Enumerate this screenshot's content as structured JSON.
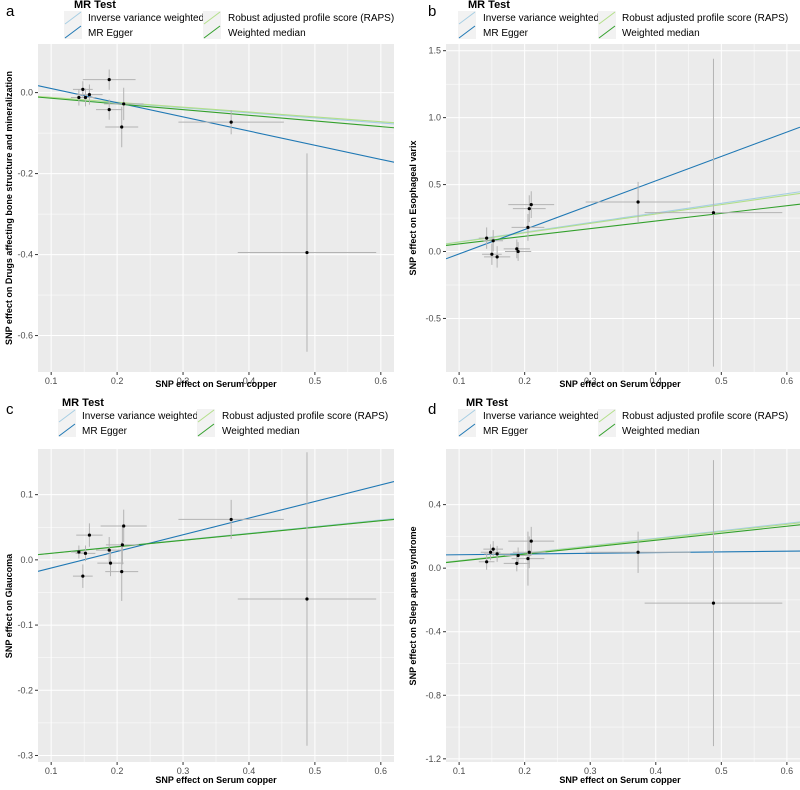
{
  "figure": {
    "legend_title": "MR Test",
    "legend_items": [
      {
        "name": "Inverse variance weighted",
        "color": "#a6cee3"
      },
      {
        "name": "Robust adjusted profile score (RAPS)",
        "color": "#b2df8a"
      },
      {
        "name": "MR Egger",
        "color": "#1f78b4"
      },
      {
        "name": "Weighted median",
        "color": "#33a02c"
      }
    ],
    "colors": {
      "panel_bg": "#ebebeb",
      "grid": "#ffffff",
      "point": "#000000",
      "errorbar": "#b3b3b3"
    }
  },
  "chart_data": [
    {
      "type": "scatter",
      "letter": "a",
      "title": "",
      "xlabel": "SNP effect on Serum copper",
      "ylabel": "SNP effect on Drugs affecting bone structure and mineralization",
      "xlim": [
        0.08,
        0.62
      ],
      "ylim": [
        -0.69,
        0.12
      ],
      "xticks": [
        0.1,
        0.2,
        0.3,
        0.4,
        0.5,
        0.6
      ],
      "xtick_labels": [
        "0.1",
        "0.2",
        "0.3",
        "0.4",
        "0.5",
        "0.6"
      ],
      "yticks": [
        0.0,
        -0.2,
        -0.4,
        -0.6
      ],
      "ytick_labels": [
        "0.0",
        "-0.2",
        "-0.4",
        "-0.6"
      ],
      "points": [
        {
          "x": 0.142,
          "y": -0.012,
          "xerr": 0.012,
          "yerr": 0.02
        },
        {
          "x": 0.148,
          "y": 0.008,
          "xerr": 0.015,
          "yerr": 0.02
        },
        {
          "x": 0.152,
          "y": -0.012,
          "xerr": 0.015,
          "yerr": 0.022
        },
        {
          "x": 0.158,
          "y": -0.005,
          "xerr": 0.02,
          "yerr": 0.025
        },
        {
          "x": 0.188,
          "y": 0.032,
          "xerr": 0.04,
          "yerr": 0.025
        },
        {
          "x": 0.188,
          "y": -0.042,
          "xerr": 0.02,
          "yerr": 0.025
        },
        {
          "x": 0.207,
          "y": -0.085,
          "xerr": 0.025,
          "yerr": 0.05
        },
        {
          "x": 0.21,
          "y": -0.028,
          "xerr": 0.03,
          "yerr": 0.04
        },
        {
          "x": 0.373,
          "y": -0.073,
          "xerr": 0.08,
          "yerr": 0.03
        },
        {
          "x": 0.488,
          "y": -0.395,
          "xerr": 0.105,
          "yerr": 0.245
        }
      ],
      "lines": [
        {
          "name": "Inverse variance weighted",
          "intercept": 0.0,
          "slope": -0.125
        },
        {
          "name": "Robust adjusted profile score (RAPS)",
          "intercept": 0.0,
          "slope": -0.12
        },
        {
          "name": "MR Egger",
          "intercept": 0.045,
          "slope": -0.35
        },
        {
          "name": "Weighted median",
          "intercept": 0.0,
          "slope": -0.14
        }
      ]
    },
    {
      "type": "scatter",
      "letter": "b",
      "title": "",
      "xlabel": "SNP effect on Serum copper",
      "ylabel": "SNP effect on Esophageal varix",
      "xlim": [
        0.08,
        0.62
      ],
      "ylim": [
        -0.9,
        1.55
      ],
      "xticks": [
        0.1,
        0.2,
        0.3,
        0.4,
        0.5,
        0.6
      ],
      "xtick_labels": [
        "0.1",
        "0.2",
        "0.3",
        "0.4",
        "0.5",
        "0.6"
      ],
      "yticks": [
        -0.5,
        0.0,
        0.5,
        1.0,
        1.5
      ],
      "ytick_labels": [
        "-0.5",
        "0.0",
        "0.5",
        "1.0",
        "1.5"
      ],
      "points": [
        {
          "x": 0.142,
          "y": 0.1,
          "xerr": 0.012,
          "yerr": 0.08
        },
        {
          "x": 0.15,
          "y": -0.02,
          "xerr": 0.015,
          "yerr": 0.08
        },
        {
          "x": 0.152,
          "y": 0.08,
          "xerr": 0.015,
          "yerr": 0.08
        },
        {
          "x": 0.158,
          "y": -0.04,
          "xerr": 0.02,
          "yerr": 0.08
        },
        {
          "x": 0.188,
          "y": 0.02,
          "xerr": 0.02,
          "yerr": 0.07
        },
        {
          "x": 0.19,
          "y": 0.0,
          "xerr": 0.02,
          "yerr": 0.07
        },
        {
          "x": 0.205,
          "y": 0.18,
          "xerr": 0.025,
          "yerr": 0.1
        },
        {
          "x": 0.207,
          "y": 0.32,
          "xerr": 0.025,
          "yerr": 0.1
        },
        {
          "x": 0.21,
          "y": 0.35,
          "xerr": 0.035,
          "yerr": 0.1
        },
        {
          "x": 0.373,
          "y": 0.37,
          "xerr": 0.08,
          "yerr": 0.15
        },
        {
          "x": 0.488,
          "y": 0.29,
          "xerr": 0.105,
          "yerr": 1.15
        }
      ],
      "lines": [
        {
          "name": "Inverse variance weighted",
          "intercept": 0.0,
          "slope": 0.72
        },
        {
          "name": "Robust adjusted profile score (RAPS)",
          "intercept": 0.0,
          "slope": 0.7
        },
        {
          "name": "MR Egger",
          "intercept": -0.2,
          "slope": 1.82
        },
        {
          "name": "Weighted median",
          "intercept": 0.0,
          "slope": 0.57
        }
      ]
    },
    {
      "type": "scatter",
      "letter": "c",
      "title": "",
      "xlabel": "SNP effect on Serum copper",
      "ylabel": "SNP effect on Glaucoma",
      "xlim": [
        0.08,
        0.62
      ],
      "ylim": [
        -0.31,
        0.17
      ],
      "xticks": [
        0.1,
        0.2,
        0.3,
        0.4,
        0.5,
        0.6
      ],
      "xtick_labels": [
        "0.1",
        "0.2",
        "0.3",
        "0.4",
        "0.5",
        "0.6"
      ],
      "yticks": [
        0.1,
        0.0,
        -0.1,
        -0.2,
        -0.3
      ],
      "ytick_labels": [
        "0.1",
        "0.0",
        "-0.1",
        "-0.2",
        "-0.3"
      ],
      "points": [
        {
          "x": 0.142,
          "y": 0.012,
          "xerr": 0.012,
          "yerr": 0.01
        },
        {
          "x": 0.148,
          "y": -0.025,
          "xerr": 0.015,
          "yerr": 0.018
        },
        {
          "x": 0.152,
          "y": 0.01,
          "xerr": 0.015,
          "yerr": 0.012
        },
        {
          "x": 0.158,
          "y": 0.038,
          "xerr": 0.02,
          "yerr": 0.018
        },
        {
          "x": 0.188,
          "y": 0.015,
          "xerr": 0.02,
          "yerr": 0.02
        },
        {
          "x": 0.19,
          "y": -0.005,
          "xerr": 0.02,
          "yerr": 0.02
        },
        {
          "x": 0.207,
          "y": -0.018,
          "xerr": 0.025,
          "yerr": 0.045
        },
        {
          "x": 0.208,
          "y": 0.023,
          "xerr": 0.025,
          "yerr": 0.03
        },
        {
          "x": 0.21,
          "y": 0.052,
          "xerr": 0.035,
          "yerr": 0.025
        },
        {
          "x": 0.373,
          "y": 0.062,
          "xerr": 0.08,
          "yerr": 0.03
        },
        {
          "x": 0.488,
          "y": -0.06,
          "xerr": 0.105,
          "yerr": 0.225
        }
      ],
      "lines": [
        {
          "name": "Inverse variance weighted",
          "intercept": 0.0,
          "slope": 0.102
        },
        {
          "name": "Robust adjusted profile score (RAPS)",
          "intercept": 0.0,
          "slope": 0.1
        },
        {
          "name": "MR Egger",
          "intercept": -0.038,
          "slope": 0.255
        },
        {
          "name": "Weighted median",
          "intercept": 0.0,
          "slope": 0.1
        }
      ]
    },
    {
      "type": "scatter",
      "letter": "d",
      "title": "",
      "xlabel": "SNP effect on Serum copper",
      "ylabel": "SNP effect on Sleep apnea syndrome",
      "xlim": [
        0.08,
        0.62
      ],
      "ylim": [
        -1.22,
        0.75
      ],
      "xticks": [
        0.1,
        0.2,
        0.3,
        0.4,
        0.5,
        0.6
      ],
      "xtick_labels": [
        "0.1",
        "0.2",
        "0.3",
        "0.4",
        "0.5",
        "0.6"
      ],
      "yticks": [
        0.4,
        0.0,
        -0.4,
        -0.8,
        -1.2
      ],
      "ytick_labels": [
        "0.4",
        "0.0",
        "-0.4",
        "-0.8",
        "-1.2"
      ],
      "points": [
        {
          "x": 0.142,
          "y": 0.04,
          "xerr": 0.012,
          "yerr": 0.05
        },
        {
          "x": 0.148,
          "y": 0.1,
          "xerr": 0.015,
          "yerr": 0.05
        },
        {
          "x": 0.152,
          "y": 0.12,
          "xerr": 0.015,
          "yerr": 0.05
        },
        {
          "x": 0.158,
          "y": 0.09,
          "xerr": 0.02,
          "yerr": 0.05
        },
        {
          "x": 0.188,
          "y": 0.03,
          "xerr": 0.02,
          "yerr": 0.05
        },
        {
          "x": 0.19,
          "y": 0.08,
          "xerr": 0.02,
          "yerr": 0.05
        },
        {
          "x": 0.205,
          "y": 0.06,
          "xerr": 0.025,
          "yerr": 0.17
        },
        {
          "x": 0.207,
          "y": 0.1,
          "xerr": 0.025,
          "yerr": 0.1
        },
        {
          "x": 0.21,
          "y": 0.17,
          "xerr": 0.035,
          "yerr": 0.09
        },
        {
          "x": 0.373,
          "y": 0.1,
          "xerr": 0.08,
          "yerr": 0.13
        },
        {
          "x": 0.488,
          "y": -0.22,
          "xerr": 0.105,
          "yerr": 0.9
        }
      ],
      "lines": [
        {
          "name": "Inverse variance weighted",
          "intercept": 0.0,
          "slope": 0.47
        },
        {
          "name": "Robust adjusted profile score (RAPS)",
          "intercept": 0.0,
          "slope": 0.46
        },
        {
          "name": "MR Egger",
          "intercept": 0.08,
          "slope": 0.045
        },
        {
          "name": "Weighted median",
          "intercept": 0.0,
          "slope": 0.44
        }
      ]
    }
  ]
}
